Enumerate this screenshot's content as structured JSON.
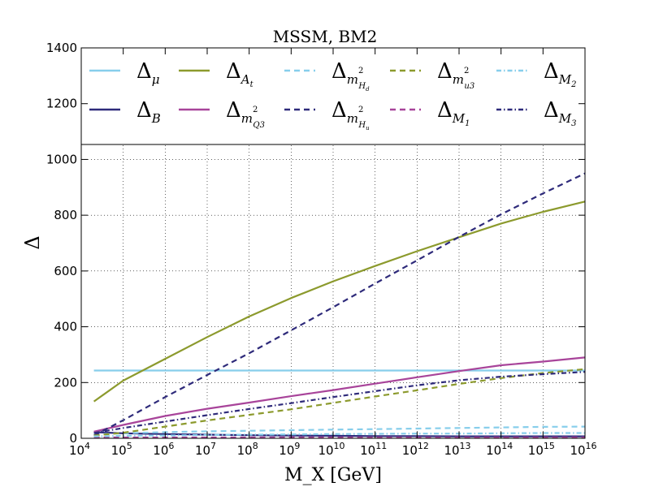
{
  "chart_data": {
    "type": "line",
    "title": "MSSM, BM2",
    "xlabel": "M_X [GeV]",
    "ylabel": "Δ",
    "x_scale": "log",
    "xlim": [
      10000,
      10000000000000000
    ],
    "ylim": [
      0,
      1400
    ],
    "x_tick_exponents": [
      4,
      5,
      6,
      7,
      8,
      9,
      10,
      11,
      12,
      13,
      14,
      15,
      16
    ],
    "x_tick_base": "10",
    "y_ticks": [
      0,
      200,
      400,
      600,
      800,
      1000,
      1200,
      1400
    ],
    "grid": true,
    "legend_placement": "top (upper band of plot area)",
    "x": [
      20000,
      100000,
      1000000,
      10000000,
      100000000,
      1000000000,
      10000000000,
      100000000000,
      1000000000000,
      10000000000000,
      100000000000000,
      1000000000000000,
      10000000000000000
    ],
    "series": [
      {
        "name": "Δ_μ",
        "color": "#87ceeb",
        "dash": "solid",
        "values": [
          243,
          243,
          243,
          243,
          243,
          243,
          243,
          243,
          243,
          243,
          243,
          243,
          243
        ]
      },
      {
        "name": "Δ_B",
        "color": "#2e2a7a",
        "dash": "solid",
        "values": [
          22,
          18,
          15,
          13,
          11,
          10,
          9,
          8,
          8,
          7,
          7,
          7,
          7
        ]
      },
      {
        "name": "Δ_A_t",
        "color": "#8c9a2d",
        "dash": "solid",
        "values": [
          132,
          207,
          285,
          363,
          437,
          503,
          563,
          618,
          671,
          721,
          770,
          812,
          849
        ]
      },
      {
        "name": "Δ_m²_Q3",
        "color": "#a8449a",
        "dash": "solid",
        "values": [
          24,
          48,
          80,
          106,
          128,
          151,
          173,
          196,
          219,
          241,
          262,
          275,
          290
        ]
      },
      {
        "name": "Δ_m²_H_d",
        "color": "#87ceeb",
        "dash": "dashed",
        "values": [
          14,
          18,
          22,
          25,
          27,
          29,
          31,
          33,
          35,
          37,
          39,
          41,
          42
        ]
      },
      {
        "name": "Δ_m²_H_u",
        "color": "#2e2a7a",
        "dash": "dashed",
        "values": [
          10,
          65,
          148,
          227,
          305,
          387,
          470,
          555,
          638,
          722,
          803,
          878,
          950
        ]
      },
      {
        "name": "Δ_m²_u3",
        "color": "#8c9a2d",
        "dash": "dashed",
        "values": [
          10,
          20,
          42,
          64,
          84,
          104,
          127,
          150,
          172,
          195,
          216,
          234,
          248
        ]
      },
      {
        "name": "Δ_M_1",
        "color": "#a8449a",
        "dash": "dashed",
        "values": [
          4,
          3,
          3,
          3,
          3,
          3,
          3,
          3,
          3,
          3,
          3,
          3,
          3
        ]
      },
      {
        "name": "Δ_M_2",
        "color": "#87ceeb",
        "dash": "dashdot",
        "values": [
          7,
          9,
          10,
          12,
          13,
          14,
          15,
          16,
          17,
          17,
          18,
          19,
          19
        ]
      },
      {
        "name": "Δ_M_3",
        "color": "#2e2a7a",
        "dash": "dashdot",
        "values": [
          19,
          37,
          60,
          83,
          105,
          126,
          148,
          169,
          190,
          208,
          221,
          230,
          238
        ]
      }
    ]
  }
}
